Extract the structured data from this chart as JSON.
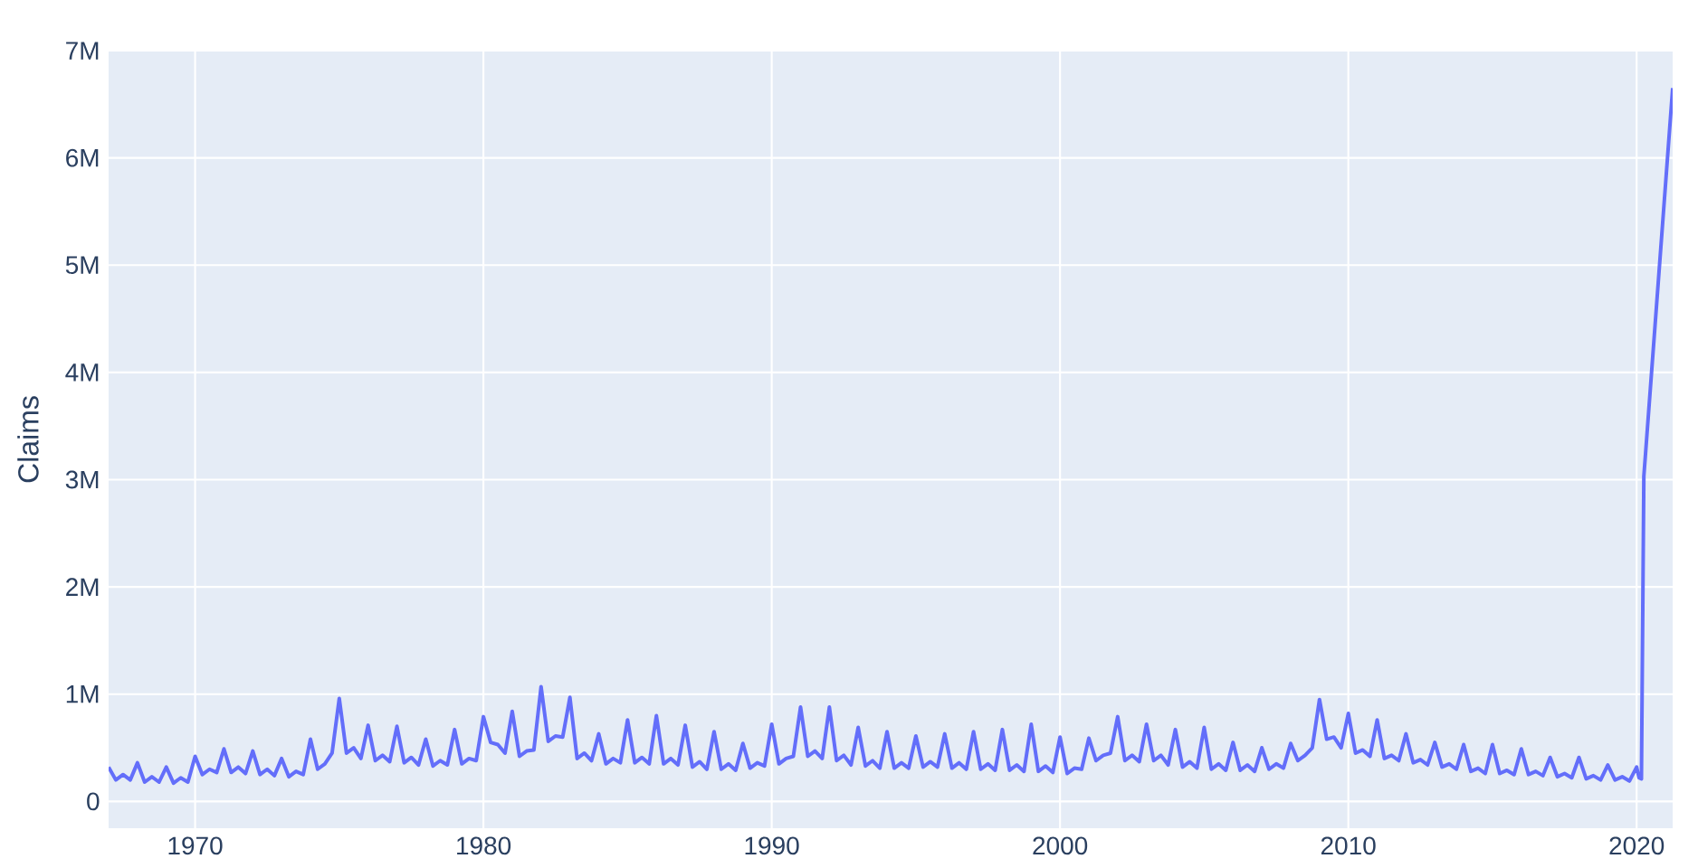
{
  "chart_data": {
    "type": "line",
    "ylabel": "Claims",
    "xlim": [
      "1967-01",
      "2021-04"
    ],
    "ylim": [
      -250000,
      7000000
    ],
    "xticks": [
      {
        "value": "1970-01",
        "label": "1970"
      },
      {
        "value": "1980-01",
        "label": "1980"
      },
      {
        "value": "1990-01",
        "label": "1990"
      },
      {
        "value": "2000-01",
        "label": "2000"
      },
      {
        "value": "2010-01",
        "label": "2010"
      },
      {
        "value": "2020-01",
        "label": "2020"
      }
    ],
    "yticks": [
      0,
      {
        "value": 1000000,
        "label": "1M"
      },
      {
        "value": 2000000,
        "label": "2M"
      },
      {
        "value": 3000000,
        "label": "3M"
      },
      {
        "value": 4000000,
        "label": "4M"
      },
      {
        "value": 5000000,
        "label": "5M"
      },
      {
        "value": 6000000,
        "label": "6M"
      },
      {
        "value": 7000000,
        "label": "7M"
      }
    ],
    "grid": true,
    "marker": "none",
    "line_style": "solid",
    "series": [
      {
        "color": "#636efa",
        "x": [
          "1967-01",
          "1967-04",
          "1967-07",
          "1967-10",
          "1968-01",
          "1968-04",
          "1968-07",
          "1968-10",
          "1969-01",
          "1969-04",
          "1969-07",
          "1969-10",
          "1970-01",
          "1970-04",
          "1970-07",
          "1970-10",
          "1971-01",
          "1971-04",
          "1971-07",
          "1971-10",
          "1972-01",
          "1972-04",
          "1972-07",
          "1972-10",
          "1973-01",
          "1973-04",
          "1973-07",
          "1973-10",
          "1974-01",
          "1974-04",
          "1974-07",
          "1974-10",
          "1975-01",
          "1975-04",
          "1975-07",
          "1975-10",
          "1976-01",
          "1976-04",
          "1976-07",
          "1976-10",
          "1977-01",
          "1977-04",
          "1977-07",
          "1977-10",
          "1978-01",
          "1978-04",
          "1978-07",
          "1978-10",
          "1979-01",
          "1979-04",
          "1979-07",
          "1979-10",
          "1980-01",
          "1980-04",
          "1980-07",
          "1980-10",
          "1981-01",
          "1981-04",
          "1981-07",
          "1981-10",
          "1982-01",
          "1982-04",
          "1982-07",
          "1982-10",
          "1983-01",
          "1983-04",
          "1983-07",
          "1983-10",
          "1984-01",
          "1984-04",
          "1984-07",
          "1984-10",
          "1985-01",
          "1985-04",
          "1985-07",
          "1985-10",
          "1986-01",
          "1986-04",
          "1986-07",
          "1986-10",
          "1987-01",
          "1987-04",
          "1987-07",
          "1987-10",
          "1988-01",
          "1988-04",
          "1988-07",
          "1988-10",
          "1989-01",
          "1989-04",
          "1989-07",
          "1989-10",
          "1990-01",
          "1990-04",
          "1990-07",
          "1990-10",
          "1991-01",
          "1991-04",
          "1991-07",
          "1991-10",
          "1992-01",
          "1992-04",
          "1992-07",
          "1992-10",
          "1993-01",
          "1993-04",
          "1993-07",
          "1993-10",
          "1994-01",
          "1994-04",
          "1994-07",
          "1994-10",
          "1995-01",
          "1995-04",
          "1995-07",
          "1995-10",
          "1996-01",
          "1996-04",
          "1996-07",
          "1996-10",
          "1997-01",
          "1997-04",
          "1997-07",
          "1997-10",
          "1998-01",
          "1998-04",
          "1998-07",
          "1998-10",
          "1999-01",
          "1999-04",
          "1999-07",
          "1999-10",
          "2000-01",
          "2000-04",
          "2000-07",
          "2000-10",
          "2001-01",
          "2001-04",
          "2001-07",
          "2001-10",
          "2002-01",
          "2002-04",
          "2002-07",
          "2002-10",
          "2003-01",
          "2003-04",
          "2003-07",
          "2003-10",
          "2004-01",
          "2004-04",
          "2004-07",
          "2004-10",
          "2005-01",
          "2005-04",
          "2005-07",
          "2005-10",
          "2006-01",
          "2006-04",
          "2006-07",
          "2006-10",
          "2007-01",
          "2007-04",
          "2007-07",
          "2007-10",
          "2008-01",
          "2008-04",
          "2008-07",
          "2008-10",
          "2009-01",
          "2009-04",
          "2009-07",
          "2009-10",
          "2010-01",
          "2010-04",
          "2010-07",
          "2010-10",
          "2011-01",
          "2011-04",
          "2011-07",
          "2011-10",
          "2012-01",
          "2012-04",
          "2012-07",
          "2012-10",
          "2013-01",
          "2013-04",
          "2013-07",
          "2013-10",
          "2014-01",
          "2014-04",
          "2014-07",
          "2014-10",
          "2015-01",
          "2015-04",
          "2015-07",
          "2015-10",
          "2016-01",
          "2016-04",
          "2016-07",
          "2016-10",
          "2017-01",
          "2017-04",
          "2017-07",
          "2017-10",
          "2018-01",
          "2018-04",
          "2018-07",
          "2018-10",
          "2019-01",
          "2019-04",
          "2019-07",
          "2019-10",
          "2020-01",
          "2020-02",
          "2020-03",
          "2020-04",
          "2021-04"
        ],
        "values": [
          320000,
          200000,
          250000,
          200000,
          360000,
          180000,
          230000,
          180000,
          320000,
          170000,
          220000,
          180000,
          420000,
          250000,
          300000,
          270000,
          490000,
          270000,
          320000,
          260000,
          470000,
          250000,
          300000,
          240000,
          400000,
          230000,
          280000,
          250000,
          580000,
          300000,
          350000,
          450000,
          960000,
          450000,
          500000,
          400000,
          710000,
          380000,
          430000,
          370000,
          700000,
          360000,
          410000,
          340000,
          580000,
          330000,
          380000,
          340000,
          670000,
          350000,
          400000,
          380000,
          790000,
          550000,
          530000,
          450000,
          840000,
          420000,
          470000,
          480000,
          1070000,
          560000,
          610000,
          600000,
          970000,
          400000,
          450000,
          380000,
          630000,
          350000,
          400000,
          360000,
          760000,
          360000,
          410000,
          350000,
          800000,
          350000,
          400000,
          340000,
          710000,
          320000,
          370000,
          300000,
          650000,
          300000,
          350000,
          290000,
          540000,
          310000,
          360000,
          330000,
          720000,
          350000,
          400000,
          420000,
          880000,
          420000,
          470000,
          400000,
          880000,
          380000,
          430000,
          340000,
          690000,
          330000,
          380000,
          310000,
          650000,
          310000,
          360000,
          310000,
          610000,
          320000,
          370000,
          320000,
          630000,
          310000,
          360000,
          300000,
          650000,
          300000,
          350000,
          290000,
          670000,
          290000,
          340000,
          280000,
          720000,
          280000,
          330000,
          270000,
          600000,
          260000,
          310000,
          300000,
          590000,
          380000,
          430000,
          450000,
          790000,
          380000,
          430000,
          370000,
          720000,
          380000,
          430000,
          340000,
          670000,
          320000,
          370000,
          310000,
          690000,
          300000,
          350000,
          290000,
          550000,
          290000,
          340000,
          280000,
          500000,
          300000,
          350000,
          310000,
          540000,
          380000,
          430000,
          500000,
          950000,
          580000,
          600000,
          500000,
          820000,
          450000,
          480000,
          420000,
          760000,
          400000,
          430000,
          380000,
          630000,
          360000,
          390000,
          340000,
          550000,
          320000,
          350000,
          300000,
          530000,
          280000,
          310000,
          260000,
          530000,
          260000,
          290000,
          250000,
          490000,
          250000,
          280000,
          240000,
          410000,
          230000,
          260000,
          220000,
          410000,
          210000,
          240000,
          200000,
          340000,
          200000,
          230000,
          190000,
          320000,
          220000,
          210000,
          3030000,
          6650000
        ]
      }
    ]
  }
}
